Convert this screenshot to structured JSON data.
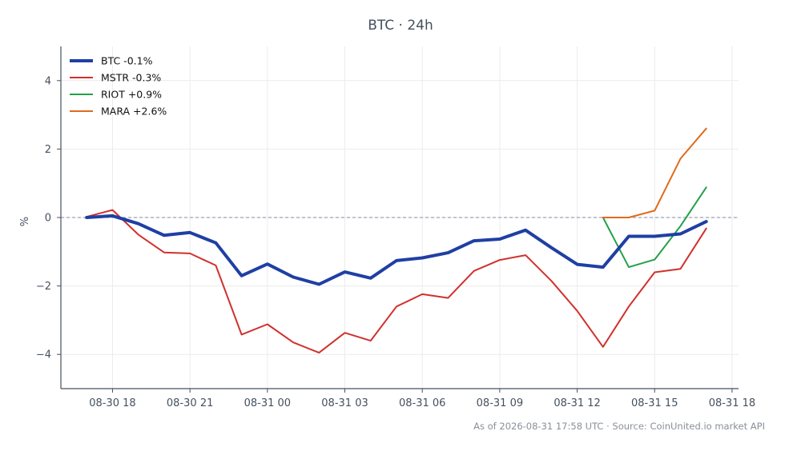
{
  "chart_data": {
    "type": "line",
    "title": "BTC · 24h",
    "ylabel": "%",
    "xlabel": "",
    "ylim": [
      -5,
      5
    ],
    "xlim": [
      "08-30 16:00",
      "08-31 18:15"
    ],
    "yticks": [
      -4,
      -2,
      0,
      2,
      4
    ],
    "ytick_labels": [
      "−4",
      "−2",
      "0",
      "2",
      "4"
    ],
    "xticks": [
      "08-30 18:00",
      "08-30 21:00",
      "08-31 00:00",
      "08-31 03:00",
      "08-31 06:00",
      "08-31 09:00",
      "08-31 12:00",
      "08-31 15:00",
      "08-31 18:00"
    ],
    "xtick_labels": [
      "08-30 18",
      "08-30 21",
      "08-31 00",
      "08-31 03",
      "08-31 06",
      "08-31 09",
      "08-31 12",
      "08-31 15",
      "08-31 18"
    ],
    "grid": true,
    "zero_line": true,
    "legend_position": "top-left",
    "source_note": "As of 2026-08-31 17:58 UTC · Source: CoinUnited.io market API",
    "series": [
      {
        "name": "BTC -0.1%",
        "color": "#1f3fa3",
        "emphasis": true,
        "x": [
          "08-30 17:00",
          "08-30 18:00",
          "08-30 19:00",
          "08-30 20:00",
          "08-30 21:00",
          "08-30 22:00",
          "08-30 23:00",
          "08-31 00:00",
          "08-31 01:00",
          "08-31 02:00",
          "08-31 03:00",
          "08-31 04:00",
          "08-31 05:00",
          "08-31 06:00",
          "08-31 07:00",
          "08-31 08:00",
          "08-31 09:00",
          "08-31 10:00",
          "08-31 11:00",
          "08-31 12:00",
          "08-31 13:00",
          "08-31 14:00",
          "08-31 15:00",
          "08-31 16:00",
          "08-31 17:00"
        ],
        "y": [
          0.0,
          0.05,
          -0.18,
          -0.52,
          -0.44,
          -0.74,
          -1.7,
          -1.36,
          -1.74,
          -1.95,
          -1.59,
          -1.77,
          -1.26,
          -1.18,
          -1.03,
          -0.68,
          -0.63,
          -0.37,
          -0.88,
          -1.37,
          -1.45,
          -0.55,
          -0.55,
          -0.48,
          -0.12
        ]
      },
      {
        "name": "MSTR -0.3%",
        "color": "#d0312d",
        "emphasis": false,
        "x": [
          "08-30 17:00",
          "08-30 18:00",
          "08-30 19:00",
          "08-30 20:00",
          "08-30 21:00",
          "08-30 22:00",
          "08-30 23:00",
          "08-31 00:00",
          "08-31 01:00",
          "08-31 02:00",
          "08-31 03:00",
          "08-31 04:00",
          "08-31 05:00",
          "08-31 06:00",
          "08-31 07:00",
          "08-31 08:00",
          "08-31 09:00",
          "08-31 10:00",
          "08-31 11:00",
          "08-31 12:00",
          "08-31 13:00",
          "08-31 14:00",
          "08-31 15:00",
          "08-31 16:00",
          "08-31 17:00"
        ],
        "y": [
          0.02,
          0.22,
          -0.5,
          -1.02,
          -1.05,
          -1.4,
          -3.42,
          -3.12,
          -3.65,
          -3.95,
          -3.37,
          -3.6,
          -2.6,
          -2.24,
          -2.35,
          -1.56,
          -1.24,
          -1.1,
          -1.85,
          -2.73,
          -3.78,
          -2.6,
          -1.6,
          -1.5,
          -0.32
        ]
      },
      {
        "name": "RIOT +0.9%",
        "color": "#23a04a",
        "emphasis": false,
        "x": [
          "08-31 13:00",
          "08-31 14:00",
          "08-31 15:00",
          "08-31 16:00",
          "08-31 17:00"
        ],
        "y": [
          0.0,
          -1.45,
          -1.23,
          -0.25,
          0.88
        ]
      },
      {
        "name": "MARA +2.6%",
        "color": "#e06b1c",
        "emphasis": false,
        "x": [
          "08-31 13:00",
          "08-31 14:00",
          "08-31 15:00",
          "08-31 16:00",
          "08-31 17:00"
        ],
        "y": [
          0.0,
          0.0,
          0.2,
          1.72,
          2.6
        ]
      }
    ]
  }
}
